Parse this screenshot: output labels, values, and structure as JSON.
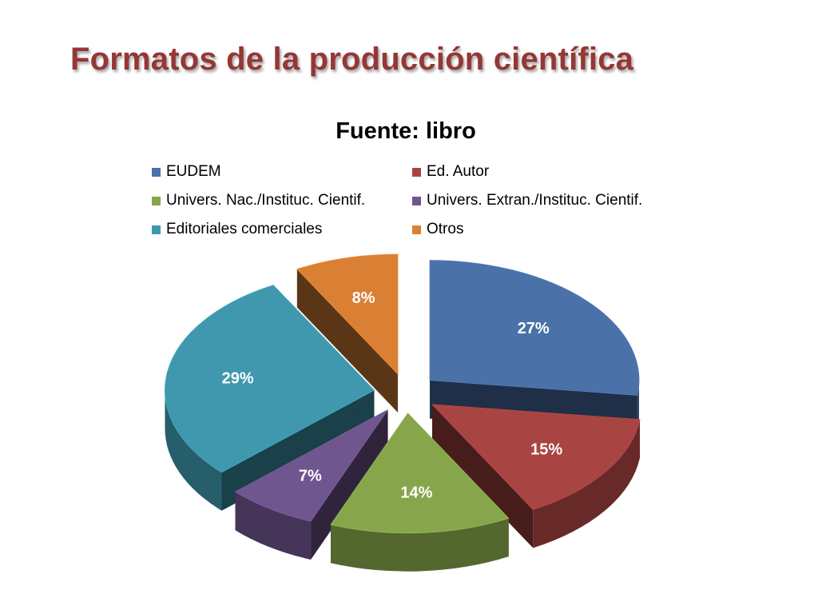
{
  "slide": {
    "title": "Formatos de la producción científica"
  },
  "chart_data": {
    "type": "pie",
    "title": "Fuente: libro",
    "legend_position": "top",
    "slices": [
      {
        "label": "EUDEM",
        "value": 27,
        "display": "27%",
        "color": "#4a71a8"
      },
      {
        "label": "Ed. Autor",
        "value": 15,
        "display": "15%",
        "color": "#a84442"
      },
      {
        "label": "Univers. Nac./Instituc. Cientif.",
        "value": 14,
        "display": "14%",
        "color": "#87a64c"
      },
      {
        "label": "Univers. Extran./Instituc. Cientif.",
        "value": 7,
        "display": "7%",
        "color": "#70568f"
      },
      {
        "label": "Editoriales comerciales",
        "value": 29,
        "display": "29%",
        "color": "#3f98ad"
      },
      {
        "label": "Otros",
        "value": 8,
        "display": "8%",
        "color": "#d98035"
      }
    ]
  }
}
